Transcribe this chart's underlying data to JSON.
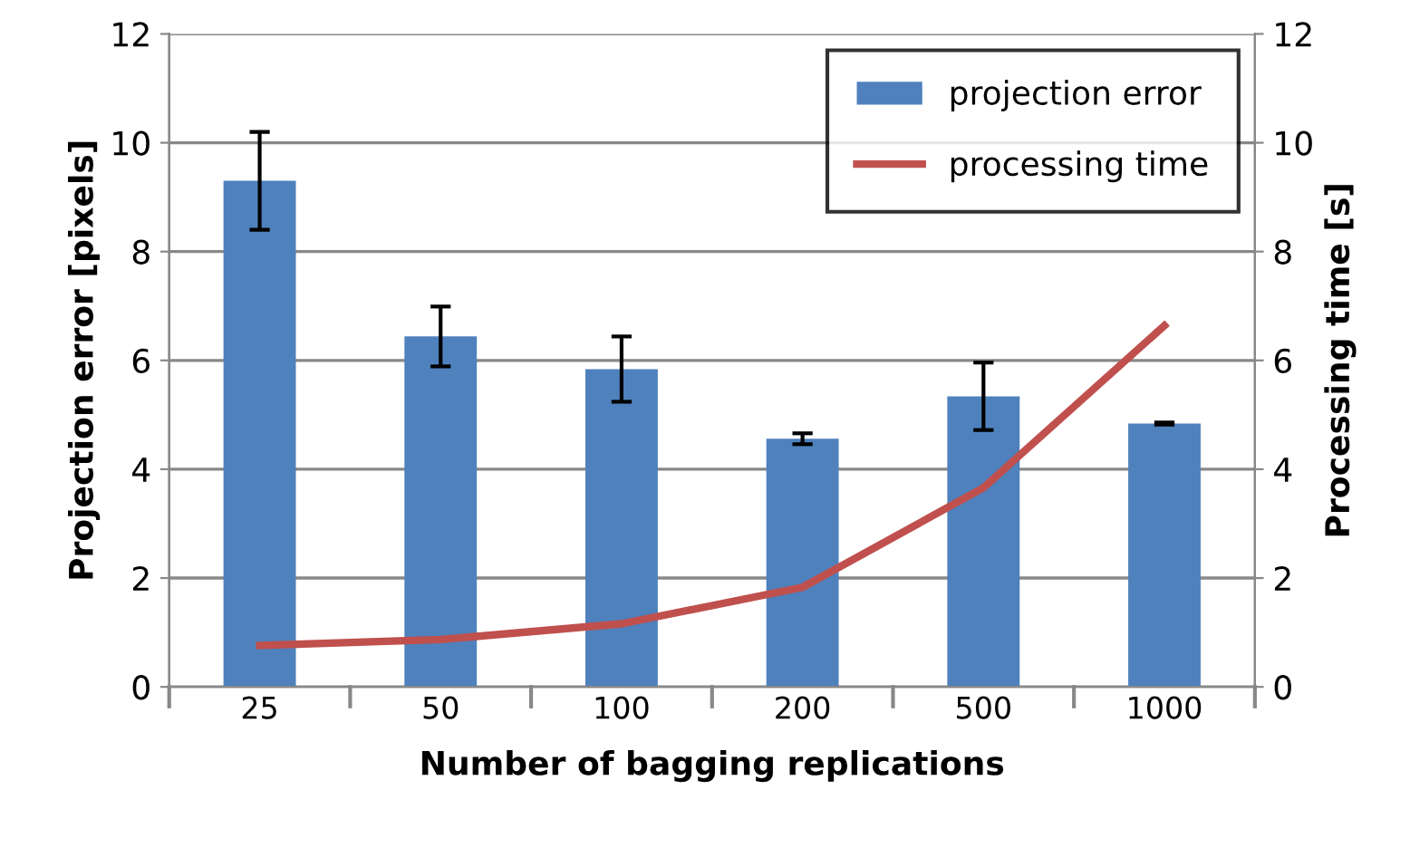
{
  "chart_data": {
    "type": "bar",
    "xlabel": "Number of bagging replications",
    "ylabel": "Projection error [pixels]",
    "y2label": "Processing time [s]",
    "categories": [
      "25",
      "50",
      "100",
      "200",
      "500",
      "1000"
    ],
    "series": [
      {
        "name": "projection error",
        "color": "#4f81bd",
        "values": [
          9.3,
          6.44,
          5.84,
          4.56,
          5.34,
          4.84
        ],
        "errors": [
          0.9,
          0.55,
          0.6,
          0.1,
          0.62,
          0.02
        ]
      },
      {
        "name": "processing time",
        "type": "line",
        "axis": "y2",
        "color": "#c0504d",
        "values": [
          0.76,
          0.87,
          1.16,
          1.83,
          3.66,
          6.64
        ]
      }
    ],
    "ylim": [
      0,
      12
    ],
    "yticks": [
      0,
      2,
      4,
      6,
      8,
      10,
      12
    ],
    "y2lim": [
      0,
      12
    ],
    "y2ticks": [
      0,
      2,
      4,
      6,
      8,
      10,
      12
    ],
    "grid": "y",
    "legend": "top right",
    "marker": "none",
    "line_style": "solid"
  }
}
